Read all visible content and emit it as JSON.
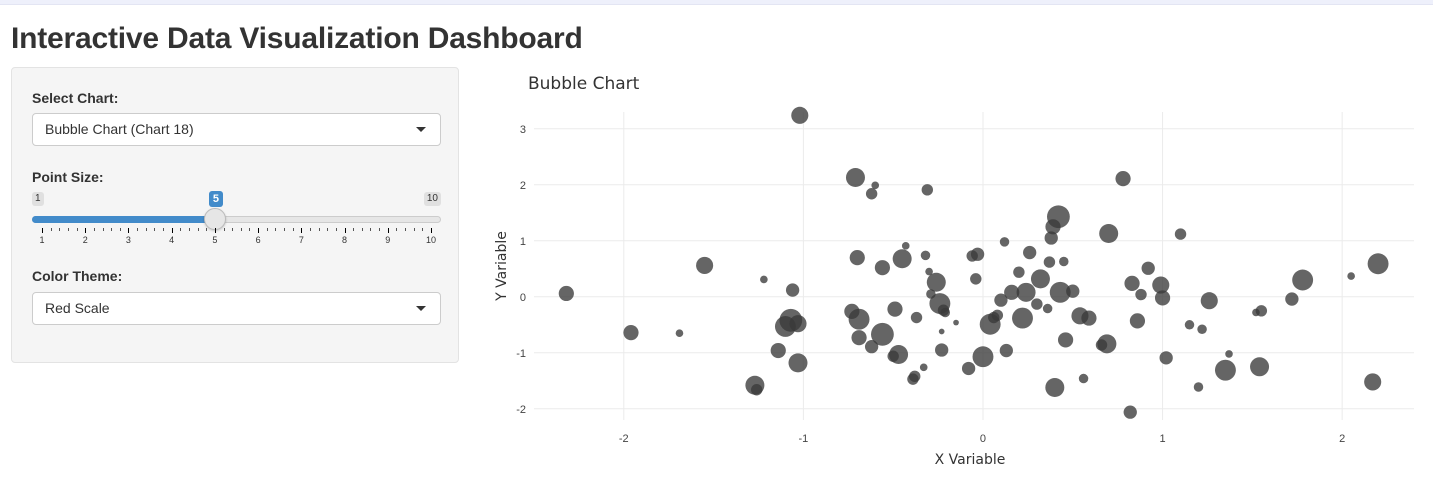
{
  "page": {
    "title": "Interactive Data Visualization Dashboard"
  },
  "controls": {
    "chart_select": {
      "label": "Select Chart:",
      "value": "Bubble Chart (Chart 18)"
    },
    "point_size": {
      "label": "Point Size:",
      "min": 1,
      "max": 10,
      "value": 5,
      "ticks": [
        "1",
        "2",
        "3",
        "4",
        "5",
        "6",
        "7",
        "8",
        "9",
        "10"
      ]
    },
    "color_theme": {
      "label": "Color Theme:",
      "value": "Red Scale"
    }
  },
  "colors": {
    "accent": "#428bca",
    "marker": "#3a3a3a",
    "grid": "#ebebeb"
  },
  "chart_data": {
    "type": "scatter",
    "title": "Bubble Chart",
    "xlabel": "X Variable",
    "ylabel": "Y Variable",
    "xlim": [
      -2.5,
      2.4
    ],
    "ylim": [
      -2.2,
      3.3
    ],
    "xticks": [
      -2,
      -1,
      0,
      1,
      2
    ],
    "yticks": [
      -2,
      -1,
      0,
      1,
      2,
      3
    ],
    "grid": true,
    "points": [
      {
        "x": -2.32,
        "y": 0.06,
        "s": 8
      },
      {
        "x": -1.96,
        "y": -0.64,
        "s": 8
      },
      {
        "x": -1.69,
        "y": -0.65,
        "s": 4
      },
      {
        "x": -1.55,
        "y": 0.56,
        "s": 9
      },
      {
        "x": -1.27,
        "y": -1.58,
        "s": 10
      },
      {
        "x": -1.26,
        "y": -1.66,
        "s": 6
      },
      {
        "x": -1.22,
        "y": 0.31,
        "s": 4
      },
      {
        "x": -1.14,
        "y": -0.96,
        "s": 8
      },
      {
        "x": -1.1,
        "y": -0.53,
        "s": 11
      },
      {
        "x": -1.07,
        "y": -0.42,
        "s": 12
      },
      {
        "x": -1.06,
        "y": 0.12,
        "s": 7
      },
      {
        "x": -1.03,
        "y": -0.48,
        "s": 9
      },
      {
        "x": -1.03,
        "y": -1.18,
        "s": 10
      },
      {
        "x": -1.02,
        "y": 3.24,
        "s": 9
      },
      {
        "x": -0.73,
        "y": -0.26,
        "s": 8
      },
      {
        "x": -0.71,
        "y": 2.13,
        "s": 10
      },
      {
        "x": -0.7,
        "y": 0.7,
        "s": 8
      },
      {
        "x": -0.69,
        "y": -0.73,
        "s": 8
      },
      {
        "x": -0.69,
        "y": -0.4,
        "s": 11
      },
      {
        "x": -0.62,
        "y": 1.84,
        "s": 6
      },
      {
        "x": -0.62,
        "y": -0.89,
        "s": 7
      },
      {
        "x": -0.6,
        "y": 1.99,
        "s": 4
      },
      {
        "x": -0.56,
        "y": -0.67,
        "s": 12
      },
      {
        "x": -0.56,
        "y": 0.52,
        "s": 8
      },
      {
        "x": -0.5,
        "y": -1.06,
        "s": 6
      },
      {
        "x": -0.49,
        "y": -0.22,
        "s": 8
      },
      {
        "x": -0.47,
        "y": -1.03,
        "s": 10
      },
      {
        "x": -0.45,
        "y": 0.68,
        "s": 10
      },
      {
        "x": -0.43,
        "y": 0.91,
        "s": 4
      },
      {
        "x": -0.39,
        "y": -1.47,
        "s": 6
      },
      {
        "x": -0.38,
        "y": -1.42,
        "s": 6
      },
      {
        "x": -0.37,
        "y": -0.37,
        "s": 6
      },
      {
        "x": -0.33,
        "y": -1.26,
        "s": 4
      },
      {
        "x": -0.32,
        "y": 0.74,
        "s": 5
      },
      {
        "x": -0.31,
        "y": 1.91,
        "s": 6
      },
      {
        "x": -0.3,
        "y": 0.45,
        "s": 4
      },
      {
        "x": -0.29,
        "y": 0.05,
        "s": 5
      },
      {
        "x": -0.26,
        "y": 0.26,
        "s": 10
      },
      {
        "x": -0.24,
        "y": -0.12,
        "s": 11
      },
      {
        "x": -0.23,
        "y": -0.62,
        "s": 3
      },
      {
        "x": -0.23,
        "y": -0.95,
        "s": 7
      },
      {
        "x": -0.22,
        "y": -0.24,
        "s": 6
      },
      {
        "x": -0.21,
        "y": -0.28,
        "s": 5
      },
      {
        "x": -0.15,
        "y": -0.46,
        "s": 3
      },
      {
        "x": -0.08,
        "y": -1.28,
        "s": 7
      },
      {
        "x": -0.06,
        "y": 0.73,
        "s": 6
      },
      {
        "x": -0.04,
        "y": 0.32,
        "s": 6
      },
      {
        "x": -0.03,
        "y": 0.76,
        "s": 7
      },
      {
        "x": 0.0,
        "y": -1.07,
        "s": 11
      },
      {
        "x": 0.04,
        "y": -0.49,
        "s": 11
      },
      {
        "x": 0.06,
        "y": -0.37,
        "s": 6
      },
      {
        "x": 0.08,
        "y": -0.33,
        "s": 6
      },
      {
        "x": 0.1,
        "y": -0.06,
        "s": 7
      },
      {
        "x": 0.12,
        "y": 0.98,
        "s": 5
      },
      {
        "x": 0.13,
        "y": -0.96,
        "s": 7
      },
      {
        "x": 0.16,
        "y": 0.08,
        "s": 8
      },
      {
        "x": 0.2,
        "y": 0.44,
        "s": 6
      },
      {
        "x": 0.22,
        "y": -0.38,
        "s": 11
      },
      {
        "x": 0.24,
        "y": 0.08,
        "s": 10
      },
      {
        "x": 0.26,
        "y": 0.79,
        "s": 7
      },
      {
        "x": 0.3,
        "y": -0.13,
        "s": 6
      },
      {
        "x": 0.32,
        "y": 0.32,
        "s": 10
      },
      {
        "x": 0.36,
        "y": -0.21,
        "s": 5
      },
      {
        "x": 0.37,
        "y": 0.62,
        "s": 6
      },
      {
        "x": 0.38,
        "y": 1.05,
        "s": 7
      },
      {
        "x": 0.39,
        "y": 1.25,
        "s": 8
      },
      {
        "x": 0.4,
        "y": -1.62,
        "s": 10
      },
      {
        "x": 0.42,
        "y": 1.43,
        "s": 12
      },
      {
        "x": 0.43,
        "y": 0.08,
        "s": 11
      },
      {
        "x": 0.45,
        "y": 0.63,
        "s": 5
      },
      {
        "x": 0.46,
        "y": -0.77,
        "s": 8
      },
      {
        "x": 0.5,
        "y": 0.1,
        "s": 7
      },
      {
        "x": 0.54,
        "y": -0.34,
        "s": 9
      },
      {
        "x": 0.56,
        "y": -1.46,
        "s": 5
      },
      {
        "x": 0.59,
        "y": -0.38,
        "s": 8
      },
      {
        "x": 0.66,
        "y": -0.86,
        "s": 6
      },
      {
        "x": 0.69,
        "y": -0.84,
        "s": 10
      },
      {
        "x": 0.7,
        "y": 1.13,
        "s": 10
      },
      {
        "x": 0.78,
        "y": 2.11,
        "s": 8
      },
      {
        "x": 0.82,
        "y": -2.06,
        "s": 7
      },
      {
        "x": 0.83,
        "y": 0.24,
        "s": 8
      },
      {
        "x": 0.86,
        "y": -0.43,
        "s": 8
      },
      {
        "x": 0.88,
        "y": 0.04,
        "s": 6
      },
      {
        "x": 0.92,
        "y": 0.51,
        "s": 7
      },
      {
        "x": 0.99,
        "y": 0.21,
        "s": 9
      },
      {
        "x": 1.0,
        "y": -0.02,
        "s": 8
      },
      {
        "x": 1.02,
        "y": -1.09,
        "s": 7
      },
      {
        "x": 1.1,
        "y": 1.12,
        "s": 6
      },
      {
        "x": 1.15,
        "y": -0.5,
        "s": 5
      },
      {
        "x": 1.2,
        "y": -1.61,
        "s": 5
      },
      {
        "x": 1.22,
        "y": -0.58,
        "s": 5
      },
      {
        "x": 1.26,
        "y": -0.07,
        "s": 9
      },
      {
        "x": 1.35,
        "y": -1.31,
        "s": 11
      },
      {
        "x": 1.37,
        "y": -1.02,
        "s": 4
      },
      {
        "x": 1.52,
        "y": -0.28,
        "s": 4
      },
      {
        "x": 1.54,
        "y": -1.25,
        "s": 10
      },
      {
        "x": 1.55,
        "y": -0.25,
        "s": 6
      },
      {
        "x": 1.72,
        "y": -0.04,
        "s": 7
      },
      {
        "x": 1.78,
        "y": 0.3,
        "s": 11
      },
      {
        "x": 2.05,
        "y": 0.37,
        "s": 4
      },
      {
        "x": 2.17,
        "y": -1.52,
        "s": 9
      },
      {
        "x": 2.2,
        "y": 0.59,
        "s": 11
      }
    ]
  }
}
